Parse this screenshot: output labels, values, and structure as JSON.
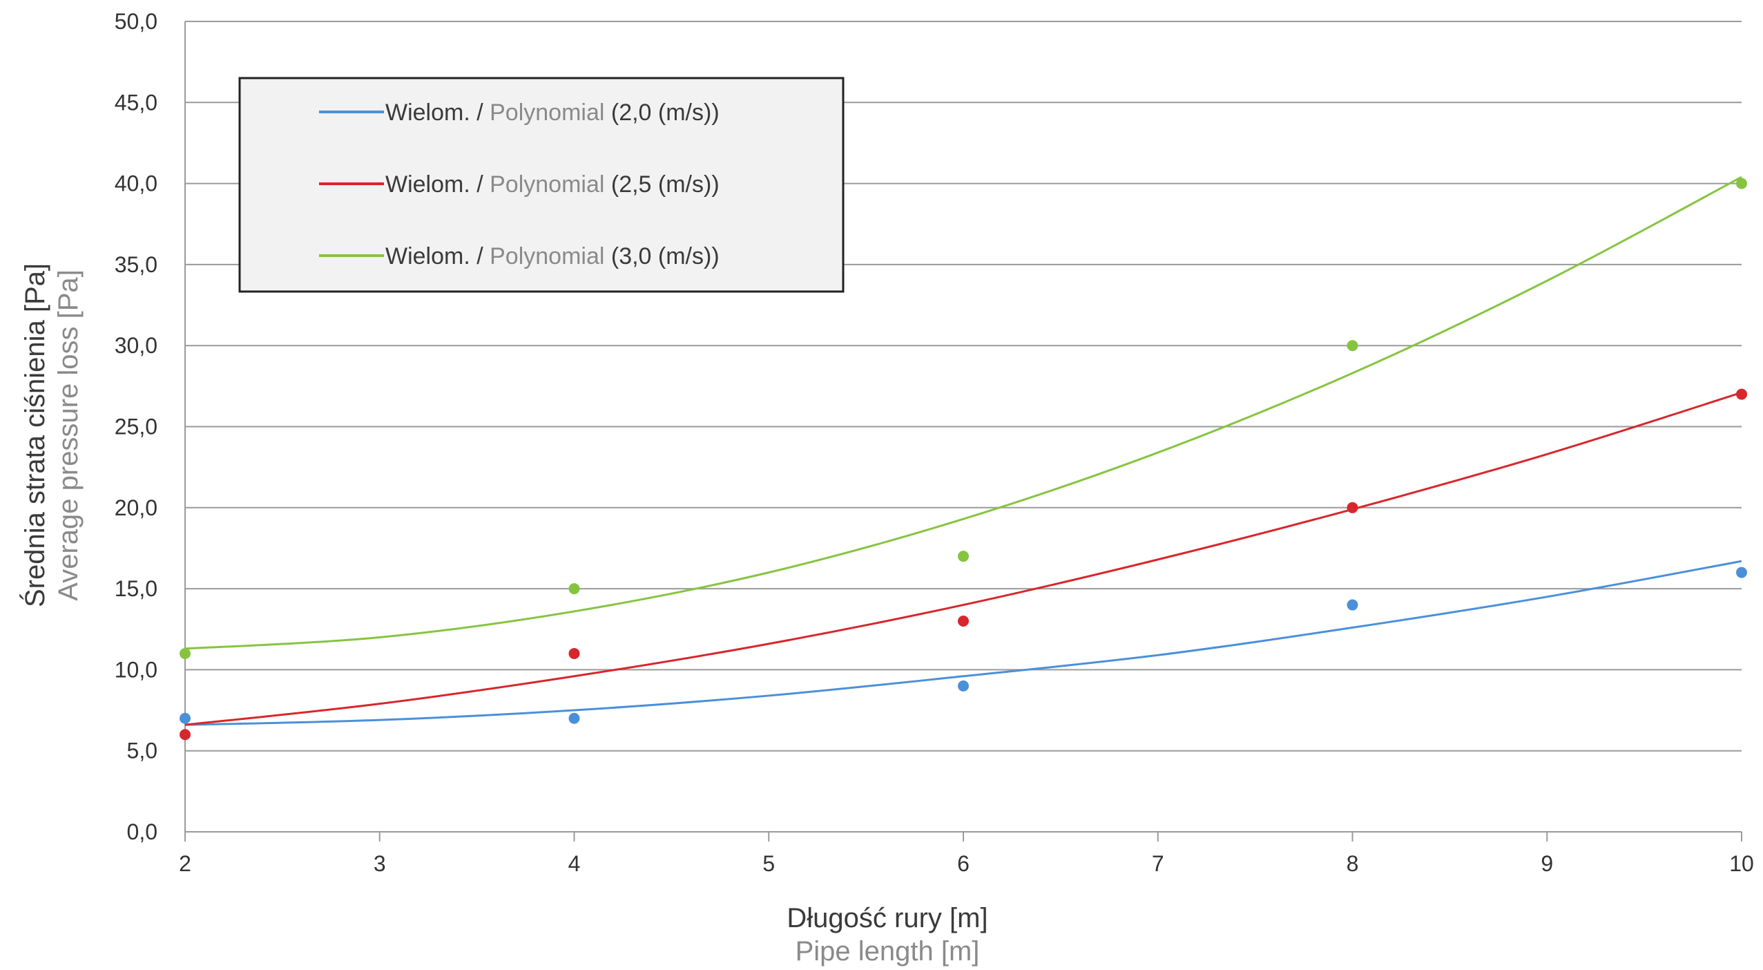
{
  "chart_data": {
    "type": "scatter",
    "x_axis": {
      "label": "Długość rury [m]",
      "label_en": "Pipe length [m]",
      "range": [
        2,
        10
      ],
      "ticks": [
        "2",
        "3",
        "4",
        "5",
        "6",
        "7",
        "8",
        "9",
        "10"
      ]
    },
    "y_axis": {
      "label": "Średnia strata ciśnienia [Pa]",
      "label_en": "Average pressure loss [Pa]",
      "range": [
        0,
        50
      ],
      "ticks": [
        "0,0",
        "5,0",
        "10,0",
        "15,0",
        "20,0",
        "25,0",
        "30,0",
        "35,0",
        "40,0",
        "45,0",
        "50,0"
      ]
    },
    "grid": "horizontal",
    "legend_position": "top-left",
    "series": [
      {
        "name": "Wielom. / Polynomial (2,0 (m/s))",
        "name_main": "Wielom. / ",
        "name_sub": "Polynomial",
        "name_tail": " (2,0 (m/s))",
        "color": "#4a90d9",
        "points": [
          [
            2,
            7.0
          ],
          [
            4,
            7.0
          ],
          [
            6,
            9.0
          ],
          [
            8,
            14.0
          ],
          [
            10,
            16.0
          ]
        ],
        "trend": [
          [
            2,
            6.6
          ],
          [
            3,
            6.9
          ],
          [
            4,
            7.5
          ],
          [
            5,
            8.4
          ],
          [
            6,
            9.6
          ],
          [
            7,
            10.9
          ],
          [
            8,
            12.6
          ],
          [
            9,
            14.5
          ],
          [
            10,
            16.7
          ]
        ]
      },
      {
        "name": "Wielom. / Polynomial (2,5 (m/s))",
        "name_main": "Wielom. / ",
        "name_sub": "Polynomial",
        "name_tail": " (2,5 (m/s))",
        "color": "#d7262c",
        "points": [
          [
            2,
            6.0
          ],
          [
            4,
            11.0
          ],
          [
            6,
            13.0
          ],
          [
            8,
            20.0
          ],
          [
            10,
            27.0
          ]
        ],
        "trend": [
          [
            2,
            6.6
          ],
          [
            3,
            7.9
          ],
          [
            4,
            9.6
          ],
          [
            5,
            11.6
          ],
          [
            6,
            14.0
          ],
          [
            7,
            16.8
          ],
          [
            8,
            19.9
          ],
          [
            9,
            23.3
          ],
          [
            10,
            27.1
          ]
        ]
      },
      {
        "name": "Wielom. / Polynomial (3,0 (m/s))",
        "name_main": "Wielom. / ",
        "name_sub": "Polynomial",
        "name_tail": " (3,0 (m/s))",
        "color": "#86c440",
        "points": [
          [
            2,
            11.0
          ],
          [
            4,
            15.0
          ],
          [
            6,
            17.0
          ],
          [
            8,
            30.0
          ],
          [
            10,
            40.0
          ]
        ],
        "trend": [
          [
            2,
            11.3
          ],
          [
            3,
            12.0
          ],
          [
            4,
            13.6
          ],
          [
            5,
            16.0
          ],
          [
            6,
            19.3
          ],
          [
            7,
            23.4
          ],
          [
            8,
            28.3
          ],
          [
            9,
            34.0
          ],
          [
            10,
            40.4
          ]
        ]
      }
    ]
  }
}
